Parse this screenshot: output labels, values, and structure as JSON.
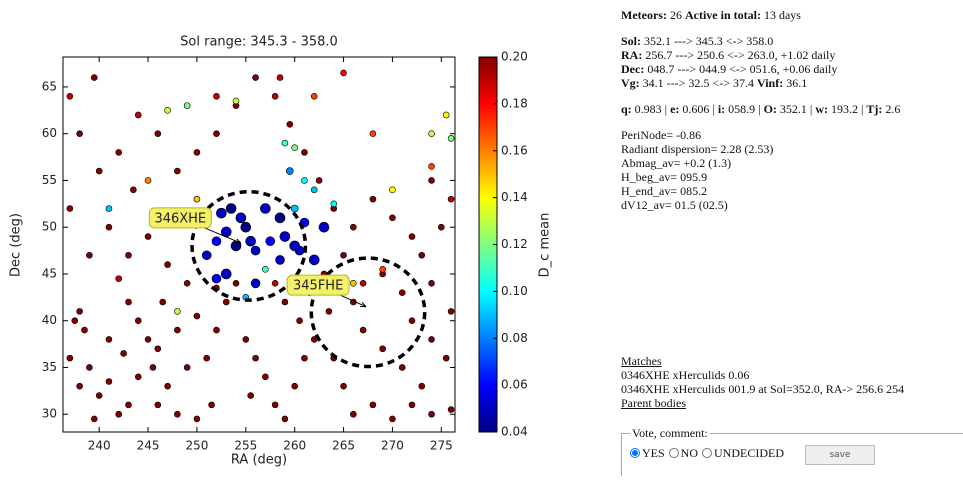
{
  "chart_data": {
    "type": "scatter",
    "title": "Sol range: 345.3 - 358.0",
    "xlabel": "RA (deg)",
    "ylabel": "Dec (deg)",
    "colorbar_label": "D_c mean",
    "xlim": [
      236.3,
      276.4
    ],
    "ylim": [
      28.1,
      68.2
    ],
    "xticks": [
      240,
      245,
      250,
      255,
      260,
      265,
      270,
      275
    ],
    "yticks": [
      30,
      35,
      40,
      45,
      50,
      55,
      60,
      65
    ],
    "clim": [
      0.04,
      0.2
    ],
    "cticks": [
      0.04,
      0.06,
      0.08,
      {
        "value": 0.1,
        "label": "0.10"
      },
      0.12,
      0.14,
      0.16,
      0.18,
      {
        "value": 0.2,
        "label": "0.20"
      }
    ],
    "colormap": "jet",
    "points": [
      {
        "x": 237,
        "y": 52,
        "c": 0.2,
        "s": 3
      },
      {
        "x": 238,
        "y": 41,
        "c": 0.2,
        "s": 3
      },
      {
        "x": 237.5,
        "y": 40,
        "c": 0.2,
        "s": 3
      },
      {
        "x": 237,
        "y": 36,
        "c": 0.2,
        "s": 3
      },
      {
        "x": 238.5,
        "y": 39,
        "c": 0.2,
        "s": 3
      },
      {
        "x": 239,
        "y": 35,
        "c": 0.2,
        "s": 3
      },
      {
        "x": 238,
        "y": 33,
        "c": 0.2,
        "s": 3
      },
      {
        "x": 240,
        "y": 32,
        "c": 0.2,
        "s": 3
      },
      {
        "x": 241,
        "y": 33.5,
        "c": 0.2,
        "s": 3
      },
      {
        "x": 239.5,
        "y": 29.5,
        "c": 0.2,
        "s": 3
      },
      {
        "x": 242,
        "y": 30,
        "c": 0.2,
        "s": 3
      },
      {
        "x": 243,
        "y": 31,
        "c": 0.2,
        "s": 3
      },
      {
        "x": 244,
        "y": 34,
        "c": 0.2,
        "s": 3
      },
      {
        "x": 242.5,
        "y": 36.5,
        "c": 0.2,
        "s": 3
      },
      {
        "x": 241,
        "y": 38,
        "c": 0.2,
        "s": 3
      },
      {
        "x": 242,
        "y": 44.5,
        "c": 0.19,
        "s": 3
      },
      {
        "x": 243,
        "y": 42,
        "c": 0.2,
        "s": 3
      },
      {
        "x": 244,
        "y": 40,
        "c": 0.2,
        "s": 3
      },
      {
        "x": 245,
        "y": 38,
        "c": 0.2,
        "s": 3
      },
      {
        "x": 246,
        "y": 37,
        "c": 0.2,
        "s": 3
      },
      {
        "x": 245.5,
        "y": 35,
        "c": 0.2,
        "s": 3
      },
      {
        "x": 247,
        "y": 33,
        "c": 0.2,
        "s": 3
      },
      {
        "x": 248,
        "y": 30,
        "c": 0.2,
        "s": 3
      },
      {
        "x": 246,
        "y": 31,
        "c": 0.2,
        "s": 3
      },
      {
        "x": 250,
        "y": 29.5,
        "c": 0.2,
        "s": 3
      },
      {
        "x": 251.5,
        "y": 31,
        "c": 0.2,
        "s": 3
      },
      {
        "x": 249,
        "y": 35,
        "c": 0.2,
        "s": 3
      },
      {
        "x": 251,
        "y": 36,
        "c": 0.2,
        "s": 3
      },
      {
        "x": 252,
        "y": 39,
        "c": 0.2,
        "s": 3
      },
      {
        "x": 250,
        "y": 40.5,
        "c": 0.2,
        "s": 3
      },
      {
        "x": 248,
        "y": 39,
        "c": 0.2,
        "s": 3
      },
      {
        "x": 253,
        "y": 42,
        "c": 0.2,
        "s": 3
      },
      {
        "x": 254,
        "y": 44,
        "c": 0.2,
        "s": 3
      },
      {
        "x": 252,
        "y": 43.5,
        "c": 0.2,
        "s": 3
      },
      {
        "x": 255,
        "y": 38,
        "c": 0.2,
        "s": 3
      },
      {
        "x": 256,
        "y": 36,
        "c": 0.2,
        "s": 3
      },
      {
        "x": 257,
        "y": 34,
        "c": 0.2,
        "s": 3
      },
      {
        "x": 255.5,
        "y": 32,
        "c": 0.2,
        "s": 3
      },
      {
        "x": 258,
        "y": 31,
        "c": 0.2,
        "s": 3
      },
      {
        "x": 259,
        "y": 29.5,
        "c": 0.2,
        "s": 3
      },
      {
        "x": 260,
        "y": 33,
        "c": 0.2,
        "s": 3
      },
      {
        "x": 261,
        "y": 36,
        "c": 0.2,
        "s": 3
      },
      {
        "x": 262,
        "y": 38,
        "c": 0.2,
        "s": 3
      },
      {
        "x": 260.5,
        "y": 40,
        "c": 0.2,
        "s": 3
      },
      {
        "x": 259,
        "y": 42,
        "c": 0.2,
        "s": 3
      },
      {
        "x": 258,
        "y": 44,
        "c": 0.19,
        "s": 3
      },
      {
        "x": 261.5,
        "y": 43,
        "c": 0.2,
        "s": 3
      },
      {
        "x": 263,
        "y": 45,
        "c": 0.2,
        "s": 3
      },
      {
        "x": 263.5,
        "y": 41,
        "c": 0.2,
        "s": 3
      },
      {
        "x": 264,
        "y": 36,
        "c": 0.2,
        "s": 3
      },
      {
        "x": 265,
        "y": 33,
        "c": 0.2,
        "s": 3
      },
      {
        "x": 266,
        "y": 30,
        "c": 0.2,
        "s": 3
      },
      {
        "x": 268,
        "y": 31,
        "c": 0.2,
        "s": 3
      },
      {
        "x": 270,
        "y": 29.5,
        "c": 0.2,
        "s": 3
      },
      {
        "x": 272,
        "y": 31,
        "c": 0.2,
        "s": 3
      },
      {
        "x": 274,
        "y": 30,
        "c": 0.2,
        "s": 3
      },
      {
        "x": 276,
        "y": 30.5,
        "c": 0.2,
        "s": 3
      },
      {
        "x": 273,
        "y": 33,
        "c": 0.2,
        "s": 3
      },
      {
        "x": 271,
        "y": 35,
        "c": 0.2,
        "s": 3
      },
      {
        "x": 269,
        "y": 37,
        "c": 0.2,
        "s": 3
      },
      {
        "x": 267,
        "y": 39,
        "c": 0.2,
        "s": 3
      },
      {
        "x": 266,
        "y": 42,
        "c": 0.2,
        "s": 3
      },
      {
        "x": 267,
        "y": 44,
        "c": 0.19,
        "s": 3
      },
      {
        "x": 269,
        "y": 45,
        "c": 0.2,
        "s": 3
      },
      {
        "x": 271,
        "y": 43,
        "c": 0.2,
        "s": 3
      },
      {
        "x": 272,
        "y": 40,
        "c": 0.2,
        "s": 3
      },
      {
        "x": 274,
        "y": 38,
        "c": 0.2,
        "s": 3
      },
      {
        "x": 275.5,
        "y": 36,
        "c": 0.2,
        "s": 3
      },
      {
        "x": 276,
        "y": 41,
        "c": 0.2,
        "s": 3
      },
      {
        "x": 274,
        "y": 44,
        "c": 0.2,
        "s": 3
      },
      {
        "x": 273,
        "y": 47,
        "c": 0.2,
        "s": 3
      },
      {
        "x": 275,
        "y": 50,
        "c": 0.2,
        "s": 3
      },
      {
        "x": 276,
        "y": 53,
        "c": 0.19,
        "s": 3
      },
      {
        "x": 274,
        "y": 55,
        "c": 0.2,
        "s": 3
      },
      {
        "x": 272,
        "y": 49,
        "c": 0.2,
        "s": 3
      },
      {
        "x": 270,
        "y": 51,
        "c": 0.2,
        "s": 3
      },
      {
        "x": 268,
        "y": 53,
        "c": 0.2,
        "s": 3
      },
      {
        "x": 266,
        "y": 50,
        "c": 0.2,
        "s": 3
      },
      {
        "x": 265,
        "y": 47,
        "c": 0.2,
        "s": 3
      },
      {
        "x": 264,
        "y": 52,
        "c": 0.2,
        "s": 3
      },
      {
        "x": 262.5,
        "y": 55,
        "c": 0.2,
        "s": 3
      },
      {
        "x": 261,
        "y": 58,
        "c": 0.2,
        "s": 3
      },
      {
        "x": 259.5,
        "y": 61,
        "c": 0.2,
        "s": 3
      },
      {
        "x": 258,
        "y": 64,
        "c": 0.19,
        "s": 3
      },
      {
        "x": 256,
        "y": 66,
        "c": 0.2,
        "s": 3
      },
      {
        "x": 254,
        "y": 63,
        "c": 0.2,
        "s": 3
      },
      {
        "x": 252,
        "y": 60,
        "c": 0.2,
        "s": 3
      },
      {
        "x": 250,
        "y": 58,
        "c": 0.2,
        "s": 3
      },
      {
        "x": 248,
        "y": 56,
        "c": 0.2,
        "s": 3
      },
      {
        "x": 246,
        "y": 60,
        "c": 0.2,
        "s": 3
      },
      {
        "x": 244,
        "y": 62,
        "c": 0.19,
        "s": 3
      },
      {
        "x": 242,
        "y": 58,
        "c": 0.2,
        "s": 3
      },
      {
        "x": 240,
        "y": 56,
        "c": 0.2,
        "s": 3
      },
      {
        "x": 238,
        "y": 60,
        "c": 0.2,
        "s": 3
      },
      {
        "x": 237,
        "y": 64,
        "c": 0.19,
        "s": 3
      },
      {
        "x": 239.5,
        "y": 66,
        "c": 0.2,
        "s": 3
      },
      {
        "x": 243.5,
        "y": 54,
        "c": 0.2,
        "s": 3
      },
      {
        "x": 245,
        "y": 49,
        "c": 0.2,
        "s": 3
      },
      {
        "x": 247,
        "y": 46,
        "c": 0.2,
        "s": 3
      },
      {
        "x": 249,
        "y": 44,
        "c": 0.2,
        "s": 3
      },
      {
        "x": 246.5,
        "y": 42,
        "c": 0.2,
        "s": 3
      },
      {
        "x": 243,
        "y": 47,
        "c": 0.2,
        "s": 3
      },
      {
        "x": 241,
        "y": 50,
        "c": 0.2,
        "s": 3
      },
      {
        "x": 239,
        "y": 47,
        "c": 0.2,
        "s": 3
      },
      {
        "x": 247,
        "y": 62.5,
        "c": 0.13,
        "s": 3
      },
      {
        "x": 249,
        "y": 63,
        "c": 0.12,
        "s": 3
      },
      {
        "x": 254,
        "y": 63.5,
        "c": 0.13,
        "s": 3
      },
      {
        "x": 259,
        "y": 59,
        "c": 0.11,
        "s": 3
      },
      {
        "x": 260,
        "y": 58.5,
        "c": 0.12,
        "s": 3
      },
      {
        "x": 261,
        "y": 55,
        "c": 0.1,
        "s": 3
      },
      {
        "x": 262,
        "y": 54,
        "c": 0.09,
        "s": 3
      },
      {
        "x": 259.5,
        "y": 56,
        "c": 0.08,
        "s": 3.5
      },
      {
        "x": 260,
        "y": 52,
        "c": 0.09,
        "s": 3.5
      },
      {
        "x": 264,
        "y": 52.5,
        "c": 0.1,
        "s": 3
      },
      {
        "x": 270,
        "y": 54,
        "c": 0.14,
        "s": 3
      },
      {
        "x": 274,
        "y": 60,
        "c": 0.13,
        "s": 3
      },
      {
        "x": 275.5,
        "y": 62,
        "c": 0.14,
        "s": 3
      },
      {
        "x": 276,
        "y": 59.5,
        "c": 0.12,
        "s": 3
      },
      {
        "x": 241,
        "y": 52,
        "c": 0.09,
        "s": 3
      },
      {
        "x": 250,
        "y": 53,
        "c": 0.15,
        "s": 3
      },
      {
        "x": 245,
        "y": 55,
        "c": 0.16,
        "s": 3
      },
      {
        "x": 268,
        "y": 60,
        "c": 0.17,
        "s": 3
      },
      {
        "x": 269,
        "y": 45.5,
        "c": 0.17,
        "s": 3
      },
      {
        "x": 255,
        "y": 42.5,
        "c": 0.09,
        "s": 3
      },
      {
        "x": 257,
        "y": 45.5,
        "c": 0.11,
        "s": 3
      },
      {
        "x": 248,
        "y": 41,
        "c": 0.13,
        "s": 3
      },
      {
        "x": 266,
        "y": 44,
        "c": 0.15,
        "s": 3
      },
      {
        "x": 274,
        "y": 56.5,
        "c": 0.17,
        "s": 3
      },
      {
        "x": 265,
        "y": 66.5,
        "c": 0.18,
        "s": 3
      },
      {
        "x": 258.5,
        "y": 66,
        "c": 0.19,
        "s": 3
      },
      {
        "x": 262,
        "y": 64,
        "c": 0.17,
        "s": 3
      },
      {
        "x": 252,
        "y": 64,
        "c": 0.19,
        "s": 3
      },
      {
        "x": 252.5,
        "y": 51.5,
        "c": 0.05,
        "s": 5
      },
      {
        "x": 253.5,
        "y": 52,
        "c": 0.04,
        "s": 5
      },
      {
        "x": 254.5,
        "y": 51,
        "c": 0.05,
        "s": 5
      },
      {
        "x": 255,
        "y": 50,
        "c": 0.04,
        "s": 5
      },
      {
        "x": 253,
        "y": 49.5,
        "c": 0.05,
        "s": 5
      },
      {
        "x": 252,
        "y": 48.5,
        "c": 0.06,
        "s": 4.5
      },
      {
        "x": 251,
        "y": 47,
        "c": 0.05,
        "s": 4.5
      },
      {
        "x": 254,
        "y": 48,
        "c": 0.04,
        "s": 5
      },
      {
        "x": 255.5,
        "y": 48.5,
        "c": 0.05,
        "s": 5
      },
      {
        "x": 256,
        "y": 47.5,
        "c": 0.05,
        "s": 4.5
      },
      {
        "x": 253,
        "y": 45,
        "c": 0.05,
        "s": 5
      },
      {
        "x": 252,
        "y": 44.5,
        "c": 0.06,
        "s": 4.5
      },
      {
        "x": 257,
        "y": 52,
        "c": 0.05,
        "s": 5
      },
      {
        "x": 258.5,
        "y": 51,
        "c": 0.04,
        "s": 5
      },
      {
        "x": 259,
        "y": 49,
        "c": 0.05,
        "s": 5
      },
      {
        "x": 260,
        "y": 48,
        "c": 0.05,
        "s": 5
      },
      {
        "x": 260.5,
        "y": 47.5,
        "c": 0.05,
        "s": 4.5
      },
      {
        "x": 257.5,
        "y": 48.5,
        "c": 0.06,
        "s": 4.5
      },
      {
        "x": 263,
        "y": 50,
        "c": 0.05,
        "s": 5
      },
      {
        "x": 262,
        "y": 46.5,
        "c": 0.05,
        "s": 5
      },
      {
        "x": 261,
        "y": 50.5,
        "c": 0.06,
        "s": 4.5
      },
      {
        "x": 250.5,
        "y": 51,
        "c": 0.06,
        "s": 4.5
      },
      {
        "x": 256,
        "y": 44,
        "c": 0.05,
        "s": 4.5
      },
      {
        "x": 258.5,
        "y": 46.5,
        "c": 0.05,
        "s": 4.5
      }
    ],
    "annotations": [
      {
        "text": "346XHE",
        "x": 248.3,
        "y": 51.0,
        "target_x": 254.5,
        "target_y": 48.3,
        "circle_x": 255.3,
        "circle_y": 48.0,
        "radius": 5.8
      },
      {
        "text": "345FHE",
        "x": 262.4,
        "y": 43.8,
        "target_x": 267.3,
        "target_y": 41.5,
        "circle_x": 267.5,
        "circle_y": 40.9,
        "radius": 5.8
      }
    ]
  },
  "info": {
    "header": [
      {
        "label": "Meteors:",
        "text": " 26 "
      },
      {
        "label": "Active in total:",
        "text": " 13 days"
      }
    ],
    "radiant": [
      [
        {
          "label": "Sol:",
          "text": " 352.1 ---> 345.3 <-> 358.0"
        }
      ],
      [
        {
          "label": "RA:",
          "text": " 256.7 ---> 250.6 <-> 263.0, +1.02 daily"
        }
      ],
      [
        {
          "label": "Dec:",
          "text": " 048.7 ---> 044.9 <-> 051.6, +0.06 daily"
        }
      ],
      [
        {
          "label": "Vg:",
          "text": " 34.1 ---> 32.5 <-> 37.4 "
        },
        {
          "label": "Vinf:",
          "text": " 36.1"
        }
      ]
    ],
    "orbit": [
      {
        "label": "q:",
        "text": " 0.983 | "
      },
      {
        "label": "e:",
        "text": " 0.606 | "
      },
      {
        "label": "i:",
        "text": " 058.9 | "
      },
      {
        "label": "O:",
        "text": " 352.1 | "
      },
      {
        "label": "w:",
        "text": " 193.2 | "
      },
      {
        "label": "Tj:",
        "text": " 2.6"
      }
    ],
    "stats": [
      "PeriNode= -0.86",
      "Radiant dispersion= 2.28 (2.53)",
      "Abmag_av= +0.2 (1.3)",
      "H_beg_av= 095.9",
      "H_end_av= 085.2",
      "dV12_av= 01.5 (02.5)"
    ],
    "matches_title": "Matches",
    "matches": [
      "0346XHE xHerculids 0.06",
      "0346XHE xHerculids 001.9 at Sol=352.0, RA-> 256.6 254"
    ],
    "parent_bodies": "Parent bodies"
  },
  "vote": {
    "legend": "Vote, comment:",
    "options": [
      "YES",
      "NO",
      "UNDECIDED"
    ],
    "button": "save"
  }
}
